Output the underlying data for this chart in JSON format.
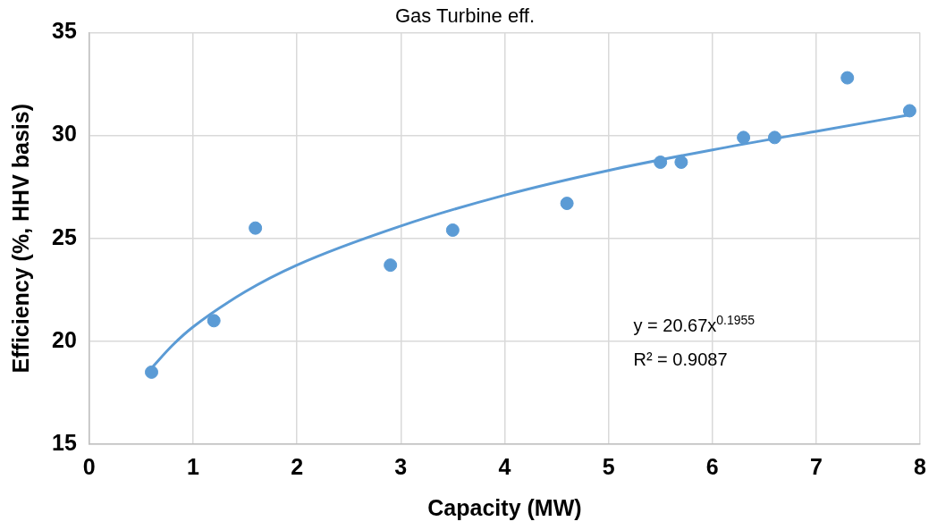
{
  "chart_data": {
    "type": "scatter",
    "title": "Gas Turbine eff.",
    "xlabel": "Capacity (MW)",
    "ylabel": "Efficiency (%, HHV basis)",
    "xlim": [
      0,
      8
    ],
    "xticks": [
      0,
      1,
      2,
      3,
      4,
      5,
      6,
      7,
      8
    ],
    "ylim": [
      15,
      35
    ],
    "yticks": [
      15,
      20,
      25,
      30,
      35
    ],
    "grid": true,
    "legend": false,
    "series": [
      {
        "marker": "circle",
        "color": "#5b9bd5",
        "x": [
          0.6,
          1.2,
          1.6,
          2.9,
          3.5,
          4.6,
          5.5,
          5.7,
          6.3,
          6.6,
          7.3,
          7.9
        ],
        "values": [
          18.5,
          21.0,
          25.5,
          23.7,
          25.4,
          26.7,
          28.7,
          28.7,
          29.9,
          29.9,
          32.8,
          31.2
        ]
      },
      {
        "type": "line",
        "marker": "none",
        "color": "#5b9bd5",
        "x": [
          0.6,
          0.8,
          1,
          1.5,
          2,
          3,
          4,
          5,
          6,
          7,
          7.9
        ],
        "values": [
          18.7,
          19.8,
          20.7,
          22.4,
          23.7,
          25.6,
          27.1,
          28.3,
          29.3,
          30.2,
          31.0
        ]
      }
    ],
    "annotations": [
      "y = 20.67x$^{0.1955}$",
      "R² = 0.9087"
    ]
  }
}
